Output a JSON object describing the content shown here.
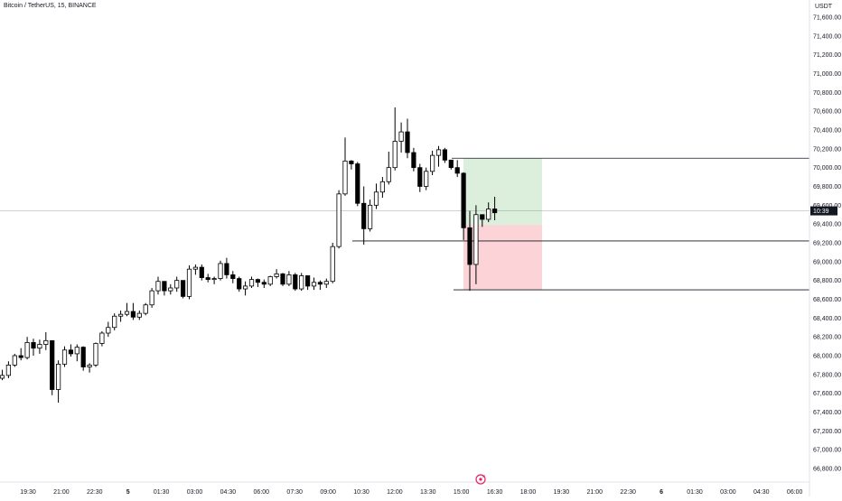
{
  "header": {
    "symbol_title": "Bitcoin / TetherUS, 15, BINANCE",
    "currency": "USDT"
  },
  "price_axis": {
    "ticks": [
      "71,600.00",
      "71,400.00",
      "71,200.00",
      "71,000.00",
      "70,800.00",
      "70,600.00",
      "70,400.00",
      "70,200.00",
      "70,000.00",
      "69,800.00",
      "69,600.00",
      "69,400.00",
      "69,200.00",
      "69,000.00",
      "68,800.00",
      "68,600.00",
      "68,400.00",
      "68,200.00",
      "68,000.00",
      "67,800.00",
      "67,600.00",
      "67,400.00",
      "67,200.00",
      "67,000.00",
      "66,800.00"
    ],
    "current_label": "10:39"
  },
  "time_axis": {
    "ticks": [
      "19:30",
      "21:00",
      "22:30",
      "5",
      "01:30",
      "03:00",
      "04:30",
      "06:00",
      "07:30",
      "09:00",
      "10:30",
      "12:00",
      "13:30",
      "15:00",
      "16:30",
      "18:00",
      "19:30",
      "21:00",
      "22:30",
      "6",
      "01:30",
      "03:00",
      "04:30",
      "06:00"
    ],
    "bold_ticks": [
      "5",
      "6"
    ]
  },
  "chart_data": {
    "type": "candlestick",
    "symbol": "BTCUSDT",
    "interval": "15",
    "exchange": "BINANCE",
    "ylim": [
      66700,
      71750
    ],
    "ohlc": [
      [
        67760,
        67850,
        67740,
        67790
      ],
      [
        67790,
        67940,
        67760,
        67900
      ],
      [
        67900,
        68020,
        67880,
        68000
      ],
      [
        68000,
        68080,
        67950,
        67980
      ],
      [
        67980,
        68200,
        67960,
        68140
      ],
      [
        68140,
        68180,
        68000,
        68080
      ],
      [
        68080,
        68170,
        68020,
        68120
      ],
      [
        68120,
        68250,
        68060,
        68160
      ],
      [
        68160,
        68140,
        67580,
        67640
      ],
      [
        67640,
        67950,
        67500,
        67910
      ],
      [
        67910,
        68100,
        67880,
        68060
      ],
      [
        68060,
        68120,
        67990,
        68020
      ],
      [
        68020,
        68120,
        67940,
        68090
      ],
      [
        68090,
        68100,
        67840,
        67880
      ],
      [
        67880,
        67920,
        67820,
        67900
      ],
      [
        67900,
        68140,
        67880,
        68130
      ],
      [
        68130,
        68260,
        68100,
        68240
      ],
      [
        68240,
        68360,
        68200,
        68300
      ],
      [
        68300,
        68450,
        68270,
        68420
      ],
      [
        68420,
        68480,
        68360,
        68440
      ],
      [
        68440,
        68560,
        68420,
        68470
      ],
      [
        68470,
        68560,
        68380,
        68410
      ],
      [
        68410,
        68480,
        68380,
        68450
      ],
      [
        68450,
        68560,
        68430,
        68540
      ],
      [
        68540,
        68720,
        68510,
        68690
      ],
      [
        68690,
        68840,
        68650,
        68790
      ],
      [
        68790,
        68760,
        68640,
        68690
      ],
      [
        68690,
        68760,
        68650,
        68720
      ],
      [
        68720,
        68840,
        68680,
        68800
      ],
      [
        68800,
        68780,
        68610,
        68630
      ],
      [
        68630,
        68960,
        68600,
        68920
      ],
      [
        68920,
        68970,
        68860,
        68940
      ],
      [
        68940,
        68970,
        68800,
        68830
      ],
      [
        68830,
        68870,
        68780,
        68810
      ],
      [
        68810,
        68840,
        68760,
        68820
      ],
      [
        68820,
        69010,
        68800,
        68980
      ],
      [
        68980,
        69040,
        68820,
        68860
      ],
      [
        68860,
        68900,
        68770,
        68820
      ],
      [
        68820,
        68840,
        68680,
        68710
      ],
      [
        68710,
        68790,
        68640,
        68740
      ],
      [
        68740,
        68840,
        68720,
        68810
      ],
      [
        68810,
        68820,
        68730,
        68780
      ],
      [
        68780,
        68810,
        68720,
        68760
      ],
      [
        68760,
        68850,
        68740,
        68840
      ],
      [
        68840,
        68920,
        68820,
        68870
      ],
      [
        68870,
        68880,
        68740,
        68760
      ],
      [
        68760,
        68900,
        68740,
        68860
      ],
      [
        68860,
        68880,
        68690,
        68710
      ],
      [
        68710,
        68880,
        68690,
        68850
      ],
      [
        68850,
        68840,
        68700,
        68740
      ],
      [
        68740,
        68830,
        68700,
        68780
      ],
      [
        68780,
        68800,
        68700,
        68760
      ],
      [
        68760,
        68820,
        68720,
        68790
      ],
      [
        68790,
        69200,
        68770,
        69160
      ],
      [
        69160,
        69760,
        69140,
        69720
      ],
      [
        69720,
        70320,
        69700,
        70070
      ],
      [
        70070,
        70080,
        69980,
        70040
      ],
      [
        70040,
        70060,
        69590,
        69620
      ],
      [
        69620,
        69800,
        69180,
        69350
      ],
      [
        69350,
        69660,
        69320,
        69600
      ],
      [
        69600,
        69830,
        69560,
        69740
      ],
      [
        69740,
        69900,
        69680,
        69850
      ],
      [
        69850,
        70170,
        69820,
        70000
      ],
      [
        70000,
        70640,
        69970,
        70280
      ],
      [
        70280,
        70480,
        70160,
        70380
      ],
      [
        70380,
        70520,
        70100,
        70160
      ],
      [
        70160,
        70210,
        69960,
        70000
      ],
      [
        70000,
        70040,
        69740,
        69800
      ],
      [
        69800,
        70000,
        69760,
        69960
      ],
      [
        69960,
        70180,
        69920,
        70130
      ],
      [
        70130,
        70230,
        70010,
        70190
      ],
      [
        70190,
        70210,
        70050,
        70080
      ],
      [
        70080,
        70060,
        69980,
        70000
      ],
      [
        70000,
        70080,
        69900,
        69940
      ],
      [
        69940,
        69950,
        69230,
        69360
      ],
      [
        69360,
        69540,
        68690,
        68970
      ],
      [
        68970,
        69600,
        68760,
        69500
      ],
      [
        69500,
        69480,
        69370,
        69450
      ],
      [
        69450,
        69630,
        69420,
        69560
      ],
      [
        69560,
        69690,
        69440,
        69520
      ]
    ],
    "horizontal_lines": [
      70100,
      69220,
      68700
    ],
    "position_tool": {
      "entry": 69390,
      "take_profit": 70100,
      "stop_loss": 68700
    },
    "last_price": 69540
  }
}
